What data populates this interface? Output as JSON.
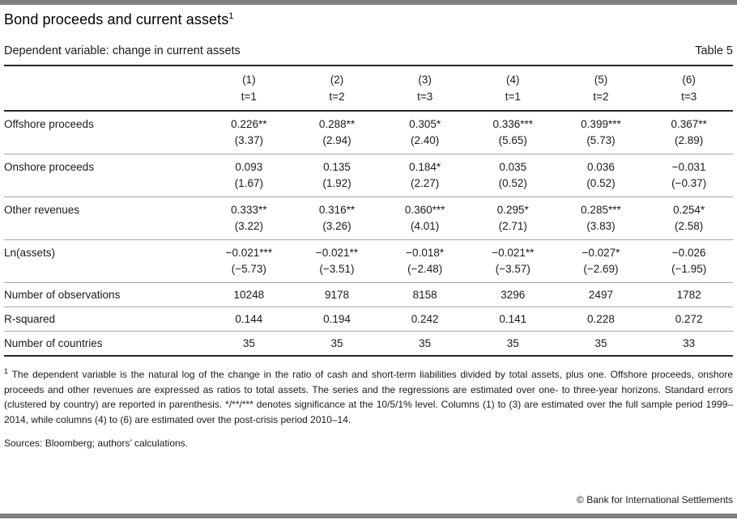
{
  "header": {
    "title": "Bond proceeds and current assets",
    "title_superscript": "1",
    "subtitle": "Dependent variable: change in current assets",
    "table_label": "Table 5"
  },
  "table": {
    "column_headers": [
      {
        "num": "(1)",
        "t": "t=1"
      },
      {
        "num": "(2)",
        "t": "t=2"
      },
      {
        "num": "(3)",
        "t": "t=3"
      },
      {
        "num": "(4)",
        "t": "t=1"
      },
      {
        "num": "(5)",
        "t": "t=2"
      },
      {
        "num": "(6)",
        "t": "t=3"
      }
    ],
    "coef_rows": [
      {
        "label": "Offshore proceeds",
        "coefs": [
          "0.226**",
          "0.288**",
          "0.305*",
          "0.336***",
          "0.399***",
          "0.367**"
        ],
        "tstats": [
          "(3.37)",
          "(2.94)",
          "(2.40)",
          "(5.65)",
          "(5.73)",
          "(2.89)"
        ]
      },
      {
        "label": "Onshore proceeds",
        "coefs": [
          "0.093",
          "0.135",
          "0.184*",
          "0.035",
          "0.036",
          "−0.031"
        ],
        "tstats": [
          "(1.67)",
          "(1.92)",
          "(2.27)",
          "(0.52)",
          "(0.52)",
          "(−0.37)"
        ]
      },
      {
        "label": "Other revenues",
        "coefs": [
          "0.333**",
          "0.316**",
          "0.360***",
          "0.295*",
          "0.285***",
          "0.254*"
        ],
        "tstats": [
          "(3.22)",
          "(3.26)",
          "(4.01)",
          "(2.71)",
          "(3.83)",
          "(2.58)"
        ]
      },
      {
        "label": "Ln(assets)",
        "coefs": [
          "−0.021***",
          "−0.021**",
          "−0.018*",
          "−0.021**",
          "−0.027*",
          "−0.026"
        ],
        "tstats": [
          "(−5.73)",
          "(−3.51)",
          "(−2.48)",
          "(−3.57)",
          "(−2.69)",
          "(−1.95)"
        ]
      }
    ],
    "stat_rows": [
      {
        "label": "Number of observations",
        "values": [
          "10248",
          "9178",
          "8158",
          "3296",
          "2497",
          "1782"
        ]
      },
      {
        "label": "R-squared",
        "values": [
          "0.144",
          "0.194",
          "0.242",
          "0.141",
          "0.228",
          "0.272"
        ]
      },
      {
        "label": "Number of countries",
        "values": [
          "35",
          "35",
          "35",
          "35",
          "35",
          "33"
        ]
      }
    ]
  },
  "footnotes": {
    "marker": "1",
    "text": "The dependent variable is the natural log of the change in the ratio of cash and short-term liabilities divided by total assets, plus one. Offshore proceeds, onshore proceeds and other revenues are expressed as ratios to total assets. The series and the regressions are estimated over one- to three-year horizons. Standard errors (clustered by country) are reported in parenthesis. */**/*** denotes significance at the 10/5/1% level. Columns (1) to (3) are estimated over the full sample period 1999–2014, while columns (4) to (6) are estimated over the post-crisis period 2010–14.",
    "sources": "Sources: Bloomberg; authors’ calculations."
  },
  "footer": {
    "copyright": "© Bank for International Settlements"
  },
  "colors": {
    "accent_bar": "#808080",
    "rule_dark": "#262626",
    "rule_light": "#a6a6a6",
    "text": "#1a1a1a"
  }
}
